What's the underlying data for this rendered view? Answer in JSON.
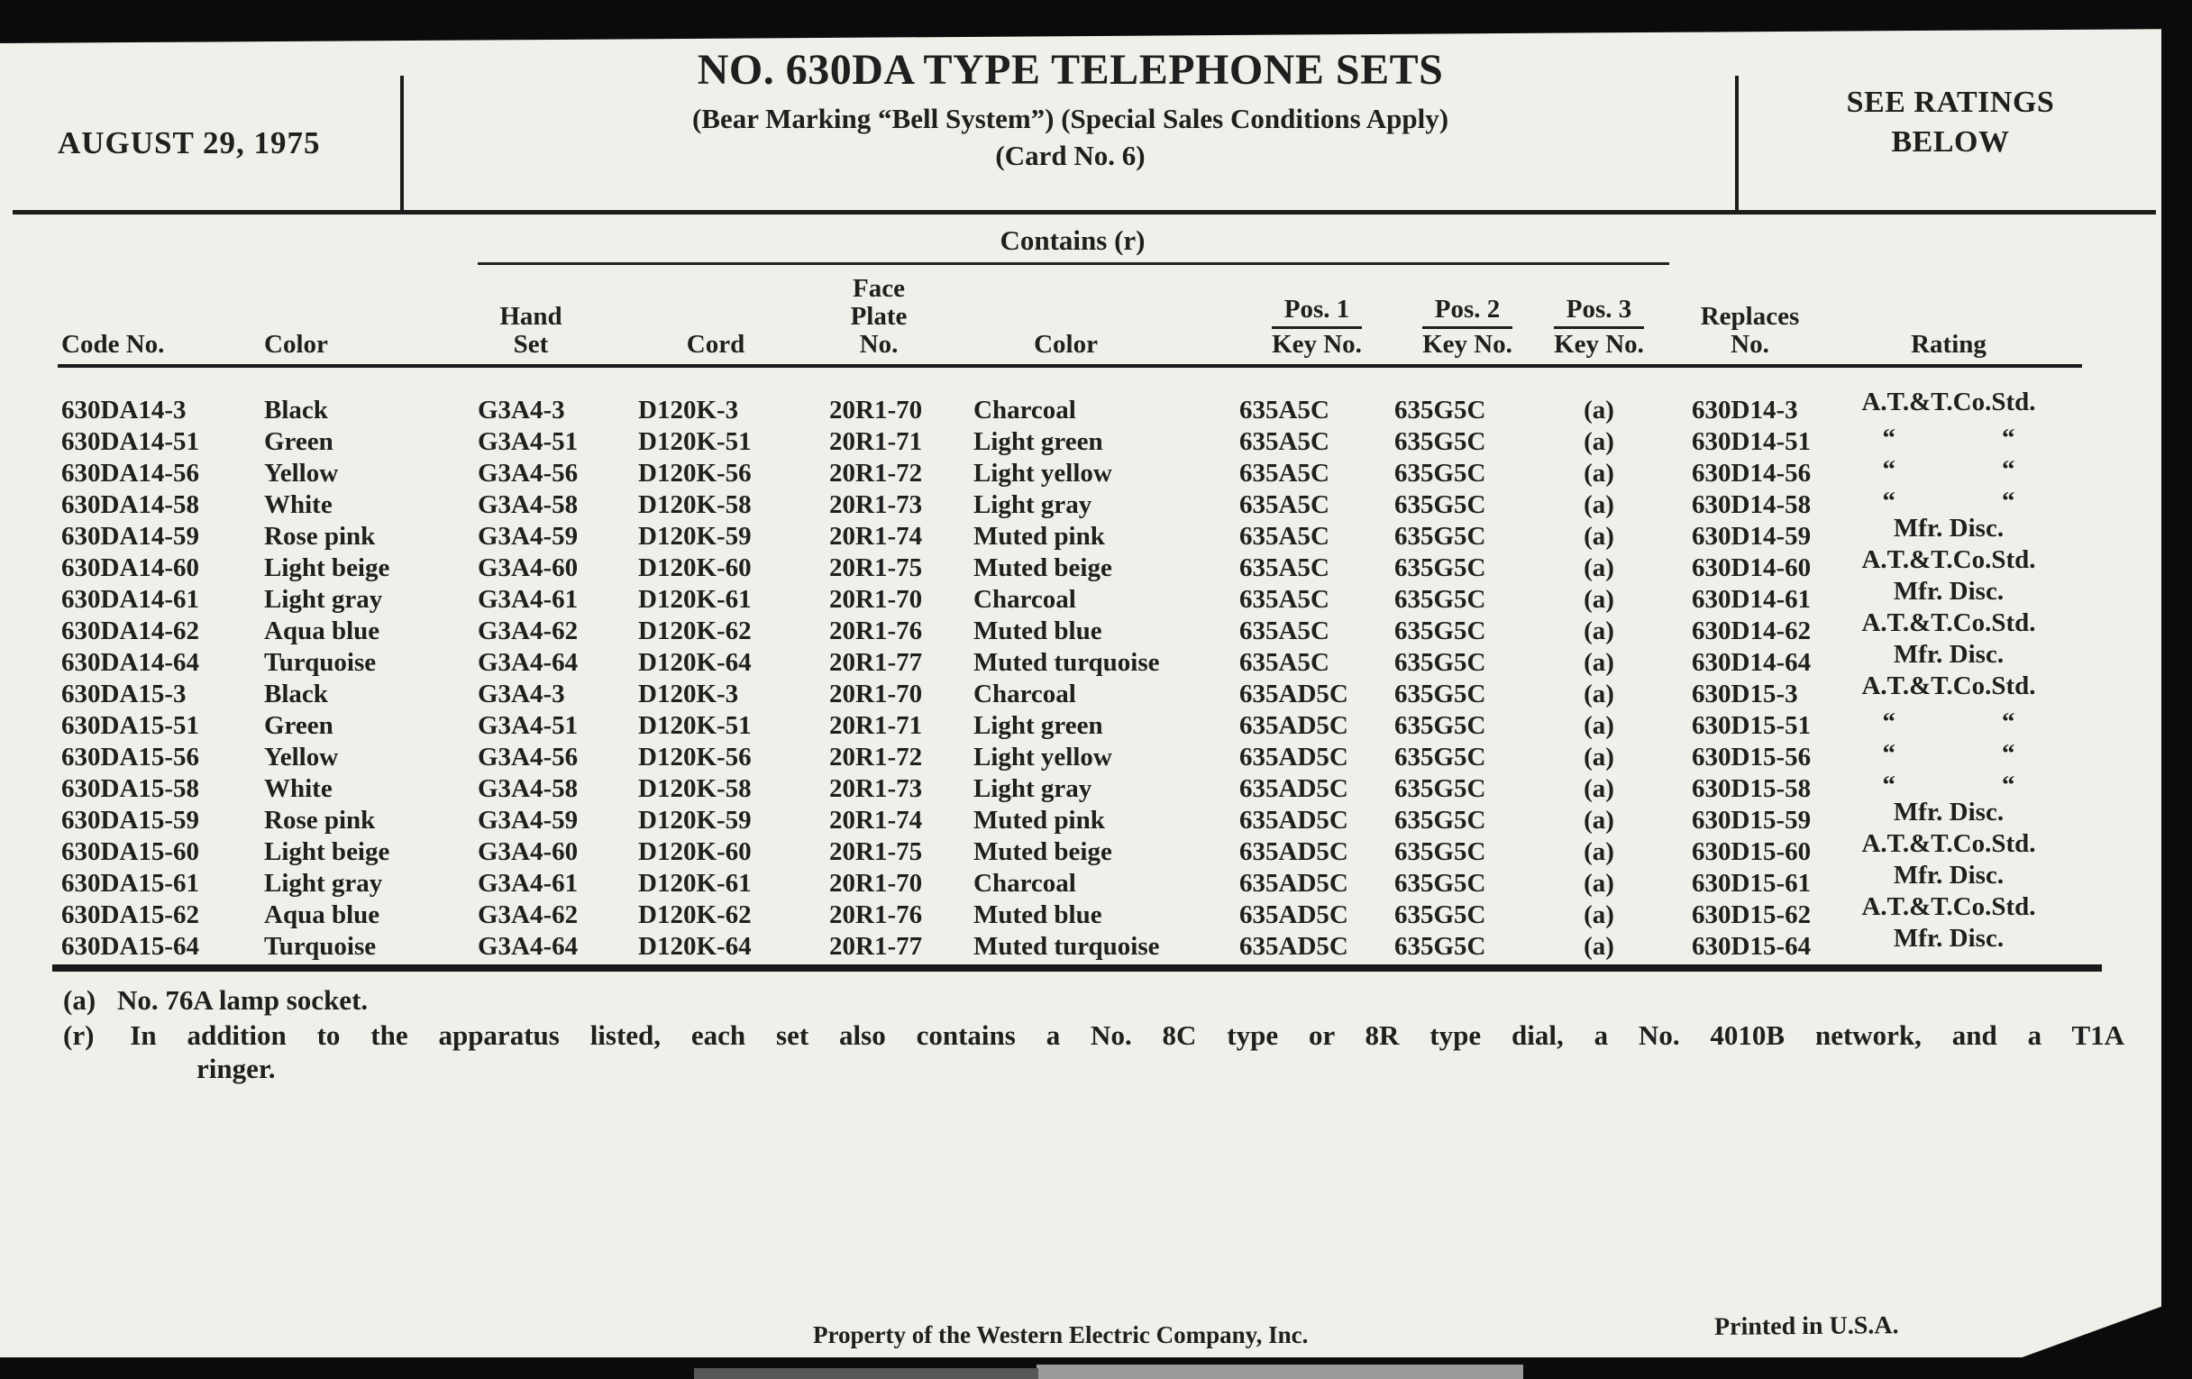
{
  "header": {
    "date": "AUGUST 29, 1975",
    "title": "NO. 630DA TYPE TELEPHONE SETS",
    "subtitle": "(Bear Marking “Bell System”) (Special Sales Conditions Apply)",
    "card_no": "(Card No. 6)",
    "see_ratings": {
      "lines": [
        "SEE RATINGS",
        "BELOW"
      ]
    }
  },
  "table": {
    "contains_label": "Contains (r)",
    "columns": [
      {
        "id": "code-no",
        "lines": [
          "Code No."
        ]
      },
      {
        "id": "color",
        "lines": [
          "Color"
        ]
      },
      {
        "id": "hand-set",
        "lines": [
          "Hand",
          "Set"
        ]
      },
      {
        "id": "cord",
        "lines": [
          "Cord"
        ]
      },
      {
        "id": "face-plate-no",
        "lines": [
          "Face",
          "Plate",
          "No."
        ]
      },
      {
        "id": "face-color",
        "lines": [
          "Color"
        ]
      },
      {
        "id": "pos1-key-no",
        "lines": [
          "Pos. 1"
        ],
        "underlined_sub": "Key No."
      },
      {
        "id": "pos2-key-no",
        "lines": [
          "Pos. 2"
        ],
        "underlined_sub": "Key No."
      },
      {
        "id": "pos3-key-no",
        "lines": [
          "Pos. 3"
        ],
        "underlined_sub": "Key No."
      },
      {
        "id": "replaces-no",
        "lines": [
          "Replaces",
          "No."
        ]
      },
      {
        "id": "rating",
        "lines": [
          "Rating"
        ]
      }
    ],
    "ditto_mark": "“ “",
    "rows": [
      [
        "630DA14-3",
        "Black",
        "G3A4-3",
        "D120K-3",
        "20R1-70",
        "Charcoal",
        "635A5C",
        "635G5C",
        "(a)",
        "630D14-3",
        "A.T.&T.Co.Std."
      ],
      [
        "630DA14-51",
        "Green",
        "G3A4-51",
        "D120K-51",
        "20R1-71",
        "Light green",
        "635A5C",
        "635G5C",
        "(a)",
        "630D14-51",
        "“ “"
      ],
      [
        "630DA14-56",
        "Yellow",
        "G3A4-56",
        "D120K-56",
        "20R1-72",
        "Light yellow",
        "635A5C",
        "635G5C",
        "(a)",
        "630D14-56",
        "“ “"
      ],
      [
        "630DA14-58",
        "White",
        "G3A4-58",
        "D120K-58",
        "20R1-73",
        "Light gray",
        "635A5C",
        "635G5C",
        "(a)",
        "630D14-58",
        "“ “"
      ],
      [
        "630DA14-59",
        "Rose pink",
        "G3A4-59",
        "D120K-59",
        "20R1-74",
        "Muted pink",
        "635A5C",
        "635G5C",
        "(a)",
        "630D14-59",
        "Mfr. Disc."
      ],
      [
        "630DA14-60",
        "Light beige",
        "G3A4-60",
        "D120K-60",
        "20R1-75",
        "Muted beige",
        "635A5C",
        "635G5C",
        "(a)",
        "630D14-60",
        "A.T.&T.Co.Std."
      ],
      [
        "630DA14-61",
        "Light gray",
        "G3A4-61",
        "D120K-61",
        "20R1-70",
        "Charcoal",
        "635A5C",
        "635G5C",
        "(a)",
        "630D14-61",
        "Mfr. Disc."
      ],
      [
        "630DA14-62",
        "Aqua blue",
        "G3A4-62",
        "D120K-62",
        "20R1-76",
        "Muted blue",
        "635A5C",
        "635G5C",
        "(a)",
        "630D14-62",
        "A.T.&T.Co.Std."
      ],
      [
        "630DA14-64",
        "Turquoise",
        "G3A4-64",
        "D120K-64",
        "20R1-77",
        "Muted turquoise",
        "635A5C",
        "635G5C",
        "(a)",
        "630D14-64",
        "Mfr. Disc."
      ],
      [
        "630DA15-3",
        "Black",
        "G3A4-3",
        "D120K-3",
        "20R1-70",
        "Charcoal",
        "635AD5C",
        "635G5C",
        "(a)",
        "630D15-3",
        "A.T.&T.Co.Std."
      ],
      [
        "630DA15-51",
        "Green",
        "G3A4-51",
        "D120K-51",
        "20R1-71",
        "Light green",
        "635AD5C",
        "635G5C",
        "(a)",
        "630D15-51",
        "“ “"
      ],
      [
        "630DA15-56",
        "Yellow",
        "G3A4-56",
        "D120K-56",
        "20R1-72",
        "Light yellow",
        "635AD5C",
        "635G5C",
        "(a)",
        "630D15-56",
        "“ “"
      ],
      [
        "630DA15-58",
        "White",
        "G3A4-58",
        "D120K-58",
        "20R1-73",
        "Light gray",
        "635AD5C",
        "635G5C",
        "(a)",
        "630D15-58",
        "“ “"
      ],
      [
        "630DA15-59",
        "Rose pink",
        "G3A4-59",
        "D120K-59",
        "20R1-74",
        "Muted pink",
        "635AD5C",
        "635G5C",
        "(a)",
        "630D15-59",
        "Mfr. Disc."
      ],
      [
        "630DA15-60",
        "Light beige",
        "G3A4-60",
        "D120K-60",
        "20R1-75",
        "Muted beige",
        "635AD5C",
        "635G5C",
        "(a)",
        "630D15-60",
        "A.T.&T.Co.Std."
      ],
      [
        "630DA15-61",
        "Light gray",
        "G3A4-61",
        "D120K-61",
        "20R1-70",
        "Charcoal",
        "635AD5C",
        "635G5C",
        "(a)",
        "630D15-61",
        "Mfr. Disc."
      ],
      [
        "630DA15-62",
        "Aqua blue",
        "G3A4-62",
        "D120K-62",
        "20R1-76",
        "Muted blue",
        "635AD5C",
        "635G5C",
        "(a)",
        "630D15-62",
        "A.T.&T.Co.Std."
      ],
      [
        "630DA15-64",
        "Turquoise",
        "G3A4-64",
        "D120K-64",
        "20R1-77",
        "Muted turquoise",
        "635AD5C",
        "635G5C",
        "(a)",
        "630D15-64",
        "Mfr. Disc."
      ]
    ]
  },
  "footnotes": {
    "a": {
      "marker": "(a)",
      "text": "No. 76A lamp socket."
    },
    "r": {
      "marker": "(r)",
      "line1": "In addition to the apparatus listed, each set also contains a No. 8C type or 8R type dial, a No. 4010B network, and a T1A",
      "line2": "ringer."
    }
  },
  "footer": {
    "left": "Property of the Western Electric Company, Inc.",
    "right": "Printed in U.S.A."
  },
  "colors": {
    "paper": "#f1efe9",
    "ink": "#1f1f1f",
    "scan_edge": "#0b0b0b"
  }
}
